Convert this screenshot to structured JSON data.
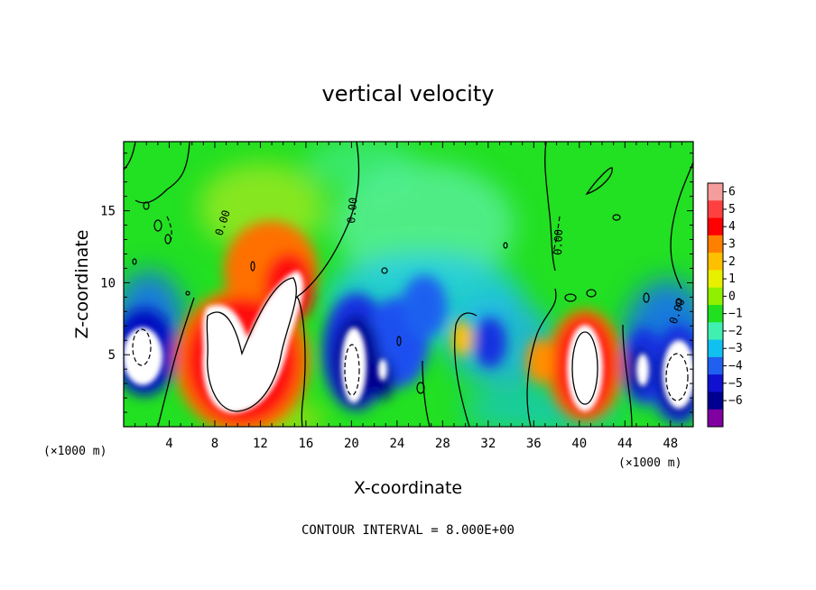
{
  "chart_data": {
    "type": "heatmap",
    "title": "vertical velocity",
    "xlabel": "X-coordinate",
    "ylabel": "Z-coordinate",
    "x_unit": "(×1000 m)",
    "footer": "CONTOUR INTERVAL = 8.000E+00",
    "xlim": [
      0,
      50
    ],
    "ylim": [
      0,
      19.8
    ],
    "x_ticks": [
      4,
      8,
      12,
      16,
      20,
      24,
      28,
      32,
      36,
      40,
      44,
      48
    ],
    "y_ticks": [
      5,
      10,
      15
    ],
    "colorbar": {
      "min": -6,
      "max": 6,
      "ticks": [
        6,
        5,
        4,
        3,
        2,
        1,
        0,
        -1,
        -2,
        -3,
        -4,
        -5,
        -6
      ],
      "colors": [
        "#f59c9c",
        "#ff4040",
        "#ff0000",
        "#ff8000",
        "#ffc000",
        "#e8f000",
        "#90f000",
        "#20e020",
        "#40f0b0",
        "#10c0f0",
        "#2060f0",
        "#1010d0",
        "#000090",
        "#8000a0"
      ]
    },
    "contour_labels": [
      "0.00",
      "0.00",
      "0.00",
      "0.00"
    ],
    "features": [
      {
        "x": 1.5,
        "z": 5.5,
        "sign": "negative",
        "strength": "strong"
      },
      {
        "x": 10,
        "z": 5.5,
        "sign": "positive",
        "strength": "strong"
      },
      {
        "x": 14,
        "z": 9,
        "sign": "positive",
        "strength": "strong"
      },
      {
        "x": 12,
        "z": 12,
        "sign": "positive",
        "strength": "moderate"
      },
      {
        "x": 20,
        "z": 4,
        "sign": "negative",
        "strength": "strong"
      },
      {
        "x": 23,
        "z": 5,
        "sign": "negative",
        "strength": "moderate"
      },
      {
        "x": 25,
        "z": 8,
        "sign": "negative",
        "strength": "weak"
      },
      {
        "x": 30,
        "z": 6,
        "sign": "positive",
        "strength": "weak"
      },
      {
        "x": 32,
        "z": 5.5,
        "sign": "negative",
        "strength": "moderate"
      },
      {
        "x": 40,
        "z": 4.5,
        "sign": "positive",
        "strength": "strong"
      },
      {
        "x": 46,
        "z": 4.5,
        "sign": "negative",
        "strength": "strong"
      },
      {
        "x": 49,
        "z": 4,
        "sign": "negative",
        "strength": "strong"
      }
    ]
  }
}
